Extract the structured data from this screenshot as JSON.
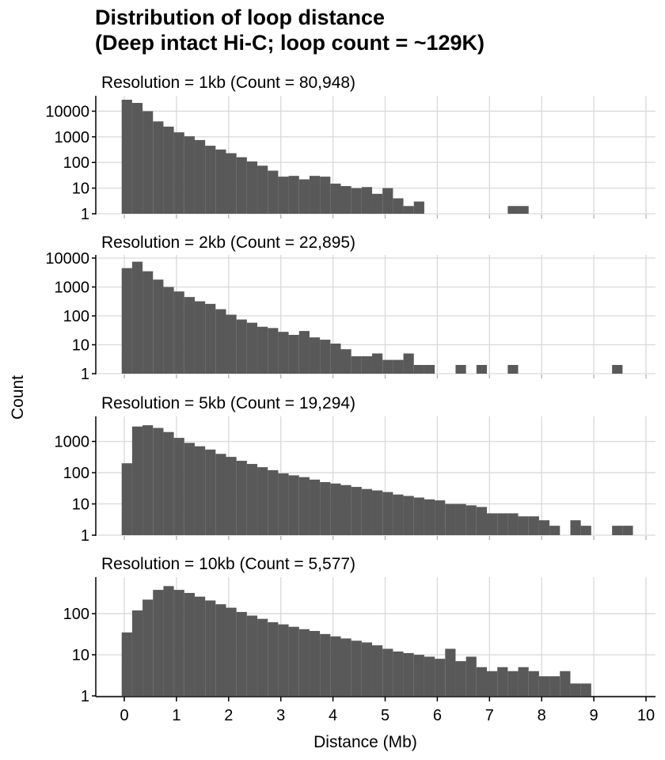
{
  "title": "Distribution of loop distance",
  "subtitle": "(Deep intact Hi-C; loop count = ~129K)",
  "colors": {
    "bar": "#595959",
    "grid": "#d9d9d9",
    "axis": "#000000"
  },
  "chart_data": {
    "type": "bar",
    "title": "Distribution of loop distance",
    "subtitle": "(Deep intact Hi-C; loop count = ~129K)",
    "xlabel": "Distance (Mb)",
    "ylabel": "Count",
    "xlim": [
      0,
      10
    ],
    "x_ticks": [
      "0",
      "1",
      "2",
      "3",
      "4",
      "5",
      "6",
      "7",
      "8",
      "9",
      "10"
    ],
    "y_scale": "log10",
    "grid": true,
    "bin_width_mb": 0.2,
    "facets": [
      {
        "label": "Resolution = 1kb (Count = 80,948)",
        "ylim": [
          1,
          30000
        ],
        "y_ticks": [
          1,
          10,
          100,
          1000,
          10000
        ],
        "bins": [
          [
            0.0,
            28000
          ],
          [
            0.2,
            21000
          ],
          [
            0.4,
            10000
          ],
          [
            0.6,
            4000
          ],
          [
            0.8,
            2500
          ],
          [
            1.0,
            1500
          ],
          [
            1.2,
            1050
          ],
          [
            1.4,
            750
          ],
          [
            1.6,
            450
          ],
          [
            1.8,
            320
          ],
          [
            2.0,
            230
          ],
          [
            2.2,
            160
          ],
          [
            2.4,
            110
          ],
          [
            2.6,
            75
          ],
          [
            2.8,
            48
          ],
          [
            3.0,
            28
          ],
          [
            3.2,
            30
          ],
          [
            3.4,
            22
          ],
          [
            3.6,
            30
          ],
          [
            3.8,
            28
          ],
          [
            4.0,
            15
          ],
          [
            4.2,
            12
          ],
          [
            4.4,
            10
          ],
          [
            4.6,
            11
          ],
          [
            4.8,
            6
          ],
          [
            5.0,
            10
          ],
          [
            5.2,
            4
          ],
          [
            5.4,
            2
          ],
          [
            5.6,
            3
          ],
          [
            7.4,
            2
          ],
          [
            7.6,
            2
          ]
        ]
      },
      {
        "label": "Resolution = 2kb (Count = 22,895)",
        "ylim": [
          1,
          10000
        ],
        "y_ticks": [
          1,
          10,
          100,
          1000,
          10000
        ],
        "bins": [
          [
            0.0,
            4500
          ],
          [
            0.2,
            7500
          ],
          [
            0.4,
            3500
          ],
          [
            0.6,
            1800
          ],
          [
            0.8,
            1000
          ],
          [
            1.0,
            700
          ],
          [
            1.2,
            450
          ],
          [
            1.4,
            320
          ],
          [
            1.6,
            260
          ],
          [
            1.8,
            170
          ],
          [
            2.0,
            110
          ],
          [
            2.2,
            75
          ],
          [
            2.4,
            58
          ],
          [
            2.6,
            42
          ],
          [
            2.8,
            38
          ],
          [
            3.0,
            28
          ],
          [
            3.2,
            22
          ],
          [
            3.4,
            30
          ],
          [
            3.6,
            18
          ],
          [
            3.8,
            15
          ],
          [
            4.0,
            11
          ],
          [
            4.2,
            7
          ],
          [
            4.4,
            4
          ],
          [
            4.6,
            4
          ],
          [
            4.8,
            5
          ],
          [
            5.0,
            3
          ],
          [
            5.2,
            3
          ],
          [
            5.4,
            5
          ],
          [
            5.6,
            2
          ],
          [
            5.8,
            2
          ],
          [
            6.4,
            2
          ],
          [
            6.8,
            2
          ],
          [
            7.4,
            2
          ],
          [
            9.4,
            2
          ]
        ]
      },
      {
        "label": "Resolution = 5kb (Count = 19,294)",
        "ylim": [
          1,
          5000
        ],
        "y_ticks": [
          1,
          10,
          100,
          1000
        ],
        "bins": [
          [
            0.0,
            200
          ],
          [
            0.2,
            3000
          ],
          [
            0.4,
            3300
          ],
          [
            0.6,
            2700
          ],
          [
            0.8,
            2000
          ],
          [
            1.0,
            1300
          ],
          [
            1.2,
            900
          ],
          [
            1.4,
            700
          ],
          [
            1.6,
            550
          ],
          [
            1.8,
            400
          ],
          [
            2.0,
            320
          ],
          [
            2.2,
            240
          ],
          [
            2.4,
            190
          ],
          [
            2.6,
            150
          ],
          [
            2.8,
            120
          ],
          [
            3.0,
            95
          ],
          [
            3.2,
            82
          ],
          [
            3.4,
            72
          ],
          [
            3.6,
            60
          ],
          [
            3.8,
            50
          ],
          [
            4.0,
            45
          ],
          [
            4.2,
            40
          ],
          [
            4.4,
            35
          ],
          [
            4.6,
            30
          ],
          [
            4.8,
            27
          ],
          [
            5.0,
            24
          ],
          [
            5.2,
            20
          ],
          [
            5.4,
            18
          ],
          [
            5.6,
            16
          ],
          [
            5.8,
            14
          ],
          [
            6.0,
            13
          ],
          [
            6.2,
            10
          ],
          [
            6.4,
            10
          ],
          [
            6.6,
            9
          ],
          [
            6.8,
            8
          ],
          [
            7.0,
            5
          ],
          [
            7.2,
            5
          ],
          [
            7.4,
            5
          ],
          [
            7.6,
            4
          ],
          [
            7.8,
            4
          ],
          [
            8.0,
            3
          ],
          [
            8.2,
            2
          ],
          [
            8.6,
            3
          ],
          [
            8.8,
            2
          ],
          [
            9.4,
            2
          ],
          [
            9.6,
            2
          ]
        ]
      },
      {
        "label": "Resolution = 10kb (Count = 5,577)",
        "ylim": [
          1,
          650
        ],
        "y_ticks": [
          1,
          10,
          100
        ],
        "bins": [
          [
            0.0,
            35
          ],
          [
            0.2,
            120
          ],
          [
            0.4,
            220
          ],
          [
            0.6,
            380
          ],
          [
            0.8,
            470
          ],
          [
            1.0,
            380
          ],
          [
            1.2,
            320
          ],
          [
            1.4,
            260
          ],
          [
            1.6,
            210
          ],
          [
            1.8,
            170
          ],
          [
            2.0,
            140
          ],
          [
            2.2,
            110
          ],
          [
            2.4,
            90
          ],
          [
            2.6,
            75
          ],
          [
            2.8,
            62
          ],
          [
            3.0,
            55
          ],
          [
            3.2,
            48
          ],
          [
            3.4,
            42
          ],
          [
            3.6,
            38
          ],
          [
            3.8,
            32
          ],
          [
            4.0,
            28
          ],
          [
            4.2,
            25
          ],
          [
            4.4,
            22
          ],
          [
            4.6,
            20
          ],
          [
            4.8,
            17
          ],
          [
            5.0,
            14
          ],
          [
            5.2,
            12
          ],
          [
            5.4,
            11
          ],
          [
            5.6,
            10
          ],
          [
            5.8,
            9
          ],
          [
            6.0,
            8
          ],
          [
            6.2,
            14
          ],
          [
            6.4,
            7
          ],
          [
            6.6,
            9
          ],
          [
            6.8,
            5
          ],
          [
            7.0,
            4
          ],
          [
            7.2,
            5
          ],
          [
            7.4,
            4
          ],
          [
            7.6,
            5
          ],
          [
            7.8,
            4
          ],
          [
            8.0,
            3
          ],
          [
            8.2,
            3
          ],
          [
            8.4,
            4
          ],
          [
            8.6,
            2
          ],
          [
            8.8,
            2
          ]
        ]
      }
    ]
  }
}
